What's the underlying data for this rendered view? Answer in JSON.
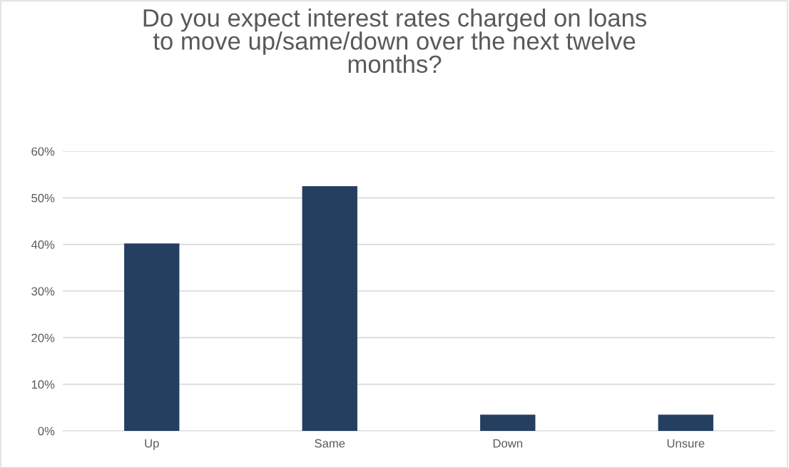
{
  "chart_data": {
    "type": "bar",
    "title": "Do you expect interest rates charged on loans\nto move up/same/down over the next twelve\nmonths?",
    "categories": [
      "Up",
      "Same",
      "Down",
      "Unsure"
    ],
    "values": [
      40.2,
      52.5,
      3.5,
      3.5
    ],
    "color": "#243f60",
    "ylim": [
      0,
      60
    ],
    "yticks": [
      {
        "value": 0,
        "label": "0%"
      },
      {
        "value": 10,
        "label": "10%"
      },
      {
        "value": 20,
        "label": "20%"
      },
      {
        "value": 30,
        "label": "30%"
      },
      {
        "value": 40,
        "label": "40%"
      },
      {
        "value": 50,
        "label": "50%"
      },
      {
        "value": 60,
        "label": "60%"
      }
    ],
    "grid": "y",
    "legend": false
  }
}
